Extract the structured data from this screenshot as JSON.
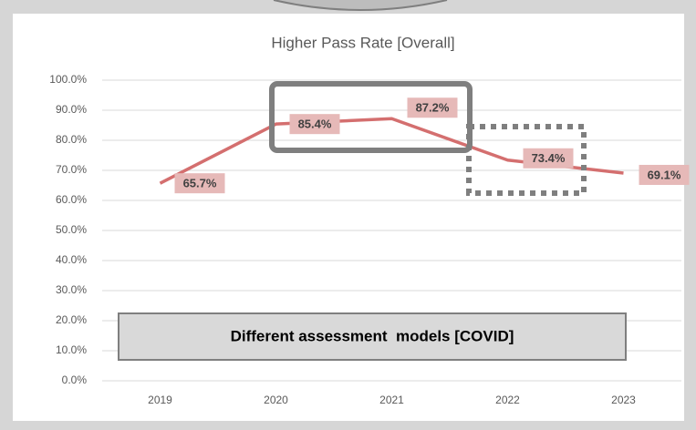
{
  "chart_data": {
    "type": "line",
    "title": "Higher Pass Rate [Overall]",
    "categories": [
      "2019",
      "2020",
      "2021",
      "2022",
      "2023"
    ],
    "series": [
      {
        "name": "Higher Pass Rate",
        "color": "#d46f6f",
        "values": [
          65.7,
          85.4,
          87.2,
          73.4,
          69.1
        ],
        "value_labels": [
          "65.7%",
          "85.4%",
          "87.2%",
          "73.4%",
          "69.1%"
        ]
      }
    ],
    "ylim": [
      0,
      100
    ],
    "yticks": [
      {
        "value": 0,
        "label": "0.0%"
      },
      {
        "value": 10,
        "label": "10.0%"
      },
      {
        "value": 20,
        "label": "20.0%"
      },
      {
        "value": 30,
        "label": "30.0%"
      },
      {
        "value": 40,
        "label": "40.0%"
      },
      {
        "value": 50,
        "label": "50.0%"
      },
      {
        "value": 60,
        "label": "60.0%"
      },
      {
        "value": 70,
        "label": "70.0%"
      },
      {
        "value": 80,
        "label": "80.0%"
      },
      {
        "value": 90,
        "label": "90.0%"
      },
      {
        "value": 100,
        "label": "100.0%"
      }
    ],
    "grid": true,
    "annotations": [
      "Different assessment  models [COVID]"
    ]
  }
}
